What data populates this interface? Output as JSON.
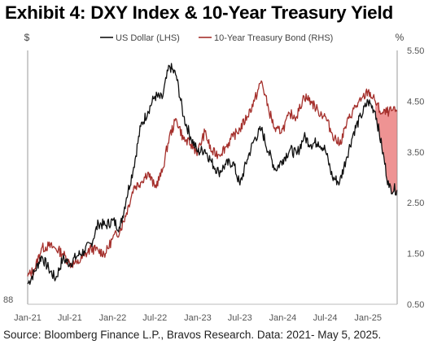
{
  "title": "Exhibit 4: DXY Index & 10-Year Treasury Yield",
  "source": "Source: Bloomberg Finance L.P., Bravos Research. Data: 2021- May 5, 2025.",
  "chart_data": {
    "type": "line",
    "title": "Exhibit 4: DXY Index & 10-Year Treasury Yield",
    "left_axis_label": "$",
    "right_axis_label": "%",
    "left_ticks": [
      "88"
    ],
    "right_ticks": [
      "5.50",
      "4.50",
      "3.50",
      "2.50",
      "1.50",
      "0.50"
    ],
    "right_ylim": [
      0.5,
      5.5
    ],
    "x_ticks": [
      "Jan-21",
      "Jul-21",
      "Jan-22",
      "Jul-22",
      "Jan-23",
      "Jul-23",
      "Jan-24",
      "Jul-24",
      "Jan-25"
    ],
    "legend": {
      "placement": "top-center"
    },
    "grid": false,
    "shaded_gap_color": "#e03a3a",
    "series": [
      {
        "name": "US Dollar (LHS)",
        "color": "#111111",
        "axis": "left",
        "values_in_rhs_scale": [
          [
            "2021-01-01",
            0.9
          ],
          [
            "2021-02-01",
            1.15
          ],
          [
            "2021-03-01",
            1.45
          ],
          [
            "2021-04-01",
            1.2
          ],
          [
            "2021-05-01",
            1.0
          ],
          [
            "2021-06-01",
            1.4
          ],
          [
            "2021-07-01",
            1.3
          ],
          [
            "2021-08-01",
            1.45
          ],
          [
            "2021-09-01",
            1.55
          ],
          [
            "2021-10-01",
            1.7
          ],
          [
            "2021-11-01",
            2.1
          ],
          [
            "2021-12-01",
            2.05
          ],
          [
            "2022-01-01",
            2.15
          ],
          [
            "2022-02-01",
            2.0
          ],
          [
            "2022-03-01",
            2.6
          ],
          [
            "2022-04-01",
            3.2
          ],
          [
            "2022-05-01",
            4.0
          ],
          [
            "2022-06-01",
            4.3
          ],
          [
            "2022-07-01",
            4.6
          ],
          [
            "2022-08-01",
            4.55
          ],
          [
            "2022-09-01",
            5.2
          ],
          [
            "2022-10-01",
            5.0
          ],
          [
            "2022-11-01",
            4.2
          ],
          [
            "2022-12-01",
            3.8
          ],
          [
            "2023-01-01",
            3.5
          ],
          [
            "2023-02-01",
            3.55
          ],
          [
            "2023-03-01",
            3.3
          ],
          [
            "2023-04-01",
            3.1
          ],
          [
            "2023-05-01",
            3.25
          ],
          [
            "2023-06-01",
            3.3
          ],
          [
            "2023-07-01",
            2.85
          ],
          [
            "2023-08-01",
            3.35
          ],
          [
            "2023-09-01",
            3.75
          ],
          [
            "2023-10-01",
            3.95
          ],
          [
            "2023-11-01",
            3.5
          ],
          [
            "2023-12-01",
            3.15
          ],
          [
            "2024-01-01",
            3.35
          ],
          [
            "2024-02-01",
            3.55
          ],
          [
            "2024-03-01",
            3.45
          ],
          [
            "2024-04-01",
            3.8
          ],
          [
            "2024-05-01",
            3.65
          ],
          [
            "2024-06-01",
            3.7
          ],
          [
            "2024-07-01",
            3.55
          ],
          [
            "2024-08-01",
            3.0
          ],
          [
            "2024-09-01",
            2.9
          ],
          [
            "2024-10-01",
            3.4
          ],
          [
            "2024-11-01",
            3.9
          ],
          [
            "2024-12-01",
            4.2
          ],
          [
            "2025-01-01",
            4.5
          ],
          [
            "2025-02-01",
            4.3
          ],
          [
            "2025-03-01",
            3.6
          ],
          [
            "2025-04-01",
            2.8
          ],
          [
            "2025-05-05",
            2.75
          ]
        ]
      },
      {
        "name": "10-Year Treasury Bond (RHS)",
        "color": "#a5302c",
        "axis": "right",
        "values": [
          [
            "2021-01-01",
            1.05
          ],
          [
            "2021-02-01",
            1.2
          ],
          [
            "2021-03-01",
            1.6
          ],
          [
            "2021-04-01",
            1.65
          ],
          [
            "2021-05-01",
            1.6
          ],
          [
            "2021-06-01",
            1.5
          ],
          [
            "2021-07-01",
            1.3
          ],
          [
            "2021-08-01",
            1.3
          ],
          [
            "2021-09-01",
            1.45
          ],
          [
            "2021-10-01",
            1.6
          ],
          [
            "2021-11-01",
            1.55
          ],
          [
            "2021-12-01",
            1.5
          ],
          [
            "2022-01-01",
            1.8
          ],
          [
            "2022-02-01",
            1.95
          ],
          [
            "2022-03-01",
            2.3
          ],
          [
            "2022-04-01",
            2.8
          ],
          [
            "2022-05-01",
            2.9
          ],
          [
            "2022-06-01",
            3.1
          ],
          [
            "2022-07-01",
            2.8
          ],
          [
            "2022-08-01",
            3.1
          ],
          [
            "2022-09-01",
            3.8
          ],
          [
            "2022-10-01",
            4.15
          ],
          [
            "2022-11-01",
            3.75
          ],
          [
            "2022-12-01",
            3.65
          ],
          [
            "2023-01-01",
            3.5
          ],
          [
            "2023-02-01",
            3.9
          ],
          [
            "2023-03-01",
            3.5
          ],
          [
            "2023-04-01",
            3.45
          ],
          [
            "2023-05-01",
            3.6
          ],
          [
            "2023-06-01",
            3.8
          ],
          [
            "2023-07-01",
            3.95
          ],
          [
            "2023-08-01",
            4.2
          ],
          [
            "2023-09-01",
            4.5
          ],
          [
            "2023-10-01",
            4.9
          ],
          [
            "2023-11-01",
            4.35
          ],
          [
            "2023-12-01",
            3.9
          ],
          [
            "2024-01-01",
            3.95
          ],
          [
            "2024-02-01",
            4.25
          ],
          [
            "2024-03-01",
            4.2
          ],
          [
            "2024-04-01",
            4.6
          ],
          [
            "2024-05-01",
            4.5
          ],
          [
            "2024-06-01",
            4.3
          ],
          [
            "2024-07-01",
            4.2
          ],
          [
            "2024-08-01",
            3.85
          ],
          [
            "2024-09-01",
            3.65
          ],
          [
            "2024-10-01",
            4.05
          ],
          [
            "2024-11-01",
            4.35
          ],
          [
            "2024-12-01",
            4.5
          ],
          [
            "2025-01-01",
            4.7
          ],
          [
            "2025-02-01",
            4.5
          ],
          [
            "2025-03-01",
            4.25
          ],
          [
            "2025-04-01",
            4.3
          ],
          [
            "2025-05-05",
            4.3
          ]
        ]
      }
    ]
  }
}
